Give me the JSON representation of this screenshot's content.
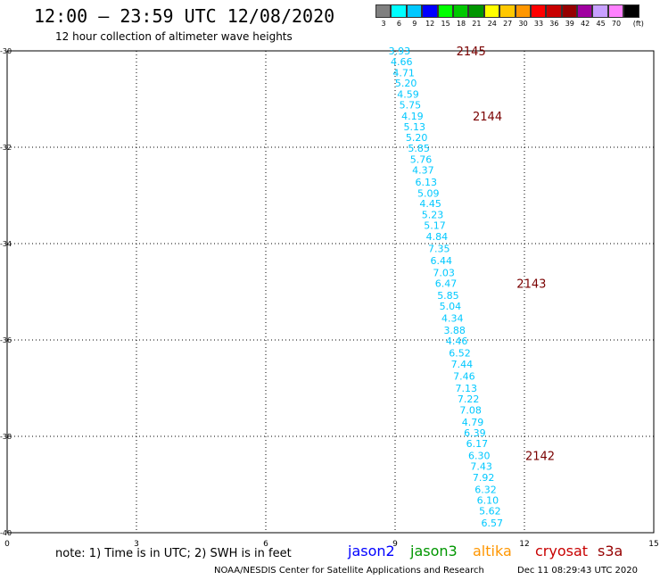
{
  "header": {
    "title": "12:00 – 23:59 UTC 12/08/2020",
    "subtitle": "12 hour collection of altimeter wave heights"
  },
  "legend": {
    "unit": "(ft)",
    "swatches": [
      {
        "label": "3",
        "color": "#808080"
      },
      {
        "label": "6",
        "color": "#00ffff"
      },
      {
        "label": "9",
        "color": "#00c8ff"
      },
      {
        "label": "12",
        "color": "#0000ff"
      },
      {
        "label": "15",
        "color": "#00ff00"
      },
      {
        "label": "18",
        "color": "#00c800"
      },
      {
        "label": "21",
        "color": "#009600"
      },
      {
        "label": "24",
        "color": "#ffff00"
      },
      {
        "label": "27",
        "color": "#ffc800"
      },
      {
        "label": "30",
        "color": "#ff9600"
      },
      {
        "label": "33",
        "color": "#ff0000"
      },
      {
        "label": "36",
        "color": "#c80000"
      },
      {
        "label": "39",
        "color": "#960000"
      },
      {
        "label": "42",
        "color": "#a000a0"
      },
      {
        "label": "45",
        "color": "#c8a0ff"
      },
      {
        "label": "70",
        "color": "#ff80ff"
      },
      {
        "label": "",
        "color": "#000000"
      }
    ]
  },
  "axes": {
    "x_ticks": [
      "0",
      "3",
      "6",
      "9",
      "12",
      "15"
    ],
    "y_ticks": [
      "-30",
      "-32",
      "-34",
      "-36",
      "-38",
      "-40"
    ],
    "xlim": [
      0,
      15
    ],
    "ylim": [
      -40,
      -30
    ]
  },
  "points_color": "#00c8ff",
  "pass_color": "#7a0000",
  "measurements": [
    {
      "lon": 9.1,
      "lat": -30.0,
      "v": "3.93"
    },
    {
      "lon": 9.15,
      "lat": -30.22,
      "v": "4.66"
    },
    {
      "lon": 9.2,
      "lat": -30.45,
      "v": "4.71"
    },
    {
      "lon": 9.25,
      "lat": -30.67,
      "v": "5.20"
    },
    {
      "lon": 9.3,
      "lat": -30.9,
      "v": "4.59"
    },
    {
      "lon": 9.35,
      "lat": -31.12,
      "v": "5.75"
    },
    {
      "lon": 9.4,
      "lat": -31.35,
      "v": "4.19"
    },
    {
      "lon": 9.45,
      "lat": -31.57,
      "v": "5.13"
    },
    {
      "lon": 9.5,
      "lat": -31.8,
      "v": "5.20"
    },
    {
      "lon": 9.55,
      "lat": -32.02,
      "v": "5.85"
    },
    {
      "lon": 9.6,
      "lat": -32.25,
      "v": "5.76"
    },
    {
      "lon": 9.65,
      "lat": -32.47,
      "v": "4.37"
    },
    {
      "lon": 9.72,
      "lat": -32.72,
      "v": "6.13"
    },
    {
      "lon": 9.77,
      "lat": -32.95,
      "v": "5.09"
    },
    {
      "lon": 9.82,
      "lat": -33.17,
      "v": "4.45"
    },
    {
      "lon": 9.87,
      "lat": -33.4,
      "v": "5.23"
    },
    {
      "lon": 9.92,
      "lat": -33.62,
      "v": "5.17"
    },
    {
      "lon": 9.97,
      "lat": -33.85,
      "v": "4.84"
    },
    {
      "lon": 10.02,
      "lat": -34.1,
      "v": "7.35"
    },
    {
      "lon": 10.07,
      "lat": -34.35,
      "v": "6.44"
    },
    {
      "lon": 10.13,
      "lat": -34.6,
      "v": "7.03"
    },
    {
      "lon": 10.18,
      "lat": -34.82,
      "v": "6.47"
    },
    {
      "lon": 10.23,
      "lat": -35.07,
      "v": "5.85"
    },
    {
      "lon": 10.28,
      "lat": -35.3,
      "v": "5.04"
    },
    {
      "lon": 10.33,
      "lat": -35.55,
      "v": "4.34"
    },
    {
      "lon": 10.38,
      "lat": -35.8,
      "v": "3.88"
    },
    {
      "lon": 10.43,
      "lat": -36.02,
      "v": "4.46"
    },
    {
      "lon": 10.5,
      "lat": -36.27,
      "v": "6.52"
    },
    {
      "lon": 10.55,
      "lat": -36.5,
      "v": "7.44"
    },
    {
      "lon": 10.6,
      "lat": -36.75,
      "v": "7.46"
    },
    {
      "lon": 10.65,
      "lat": -37.0,
      "v": "7.13"
    },
    {
      "lon": 10.7,
      "lat": -37.22,
      "v": "7.22"
    },
    {
      "lon": 10.75,
      "lat": -37.45,
      "v": "7.08"
    },
    {
      "lon": 10.8,
      "lat": -37.7,
      "v": "4.79"
    },
    {
      "lon": 10.85,
      "lat": -37.93,
      "v": "6.39"
    },
    {
      "lon": 10.9,
      "lat": -38.15,
      "v": "6.17"
    },
    {
      "lon": 10.95,
      "lat": -38.4,
      "v": "6.30"
    },
    {
      "lon": 11.0,
      "lat": -38.62,
      "v": "7.43"
    },
    {
      "lon": 11.05,
      "lat": -38.85,
      "v": "7.92"
    },
    {
      "lon": 11.1,
      "lat": -39.1,
      "v": "6.32"
    },
    {
      "lon": 11.15,
      "lat": -39.32,
      "v": "6.10"
    },
    {
      "lon": 11.2,
      "lat": -39.55,
      "v": "5.62"
    },
    {
      "lon": 11.25,
      "lat": -39.8,
      "v": "6.57"
    }
  ],
  "passes": [
    {
      "lon": 10.42,
      "lat": -30.0,
      "label": "2145"
    },
    {
      "lon": 10.8,
      "lat": -31.35,
      "label": "2144"
    },
    {
      "lon": 11.82,
      "lat": -34.82,
      "label": "2143"
    },
    {
      "lon": 12.02,
      "lat": -38.4,
      "label": "2142"
    }
  ],
  "footer": {
    "note": "note: 1) Time is in UTC; 2) SWH is in feet",
    "satellites": [
      {
        "name": "jason2",
        "color": "#0000ff"
      },
      {
        "name": "jason3",
        "color": "#009600"
      },
      {
        "name": "altika",
        "color": "#ff9600"
      },
      {
        "name": "cryosat",
        "color": "#c80000"
      },
      {
        "name": "s3a",
        "color": "#960000"
      }
    ],
    "credit": "NOAA/NESDIS Center for Satellite Applications and Research",
    "timestamp": "Dec 11 08:29:43 UTC 2020"
  }
}
